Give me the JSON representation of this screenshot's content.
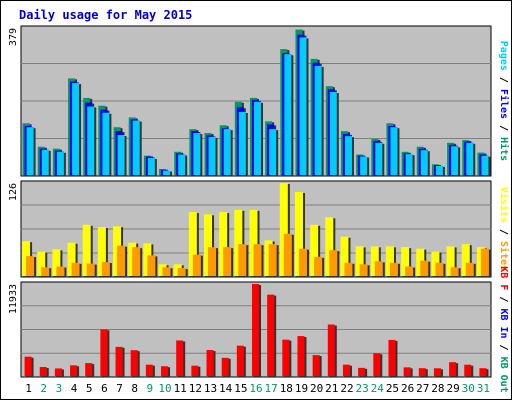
{
  "chart_data": {
    "type": "bar",
    "title": "Daily usage for May 2015",
    "days": [
      {
        "label": "1",
        "weekend": false
      },
      {
        "label": "2",
        "weekend": true
      },
      {
        "label": "3",
        "weekend": true
      },
      {
        "label": "4",
        "weekend": false
      },
      {
        "label": "5",
        "weekend": false
      },
      {
        "label": "6",
        "weekend": false
      },
      {
        "label": "7",
        "weekend": false
      },
      {
        "label": "8",
        "weekend": false
      },
      {
        "label": "9",
        "weekend": true
      },
      {
        "label": "10",
        "weekend": true
      },
      {
        "label": "11",
        "weekend": false
      },
      {
        "label": "12",
        "weekend": false
      },
      {
        "label": "13",
        "weekend": false
      },
      {
        "label": "14",
        "weekend": false
      },
      {
        "label": "15",
        "weekend": false
      },
      {
        "label": "16",
        "weekend": true
      },
      {
        "label": "17",
        "weekend": true
      },
      {
        "label": "18",
        "weekend": false
      },
      {
        "label": "19",
        "weekend": false
      },
      {
        "label": "20",
        "weekend": false
      },
      {
        "label": "21",
        "weekend": false
      },
      {
        "label": "22",
        "weekend": false
      },
      {
        "label": "23",
        "weekend": true
      },
      {
        "label": "24",
        "weekend": true
      },
      {
        "label": "25",
        "weekend": false
      },
      {
        "label": "26",
        "weekend": false
      },
      {
        "label": "27",
        "weekend": false
      },
      {
        "label": "28",
        "weekend": false
      },
      {
        "label": "29",
        "weekend": false
      },
      {
        "label": "30",
        "weekend": true
      },
      {
        "label": "31",
        "weekend": true
      }
    ],
    "panels": [
      {
        "id": "pages-files-hits",
        "ymax_label": "379",
        "ymax": 379,
        "side_label": [
          {
            "text": "Pages",
            "color": "#00ccff"
          },
          {
            "text": " / ",
            "color": "#000000"
          },
          {
            "text": "Files",
            "color": "#0000ff"
          },
          {
            "text": " / ",
            "color": "#000000"
          },
          {
            "text": "Hits",
            "color": "#009966"
          }
        ],
        "series": [
          {
            "color": "#009966",
            "values": [
              135,
              75,
              70,
              250,
              200,
              180,
              125,
              150,
              52,
              18,
              62,
              120,
              110,
              130,
              190,
              200,
              140,
              325,
              375,
              300,
              230,
              115,
              55,
              95,
              135,
              62,
              75,
              30,
              85,
              92,
              60
            ]
          },
          {
            "color": "#0000ff",
            "values": [
              128,
              70,
              65,
              242,
              188,
              170,
              115,
              145,
              50,
              16,
              58,
              115,
              104,
              122,
              176,
              195,
              132,
              315,
              362,
              290,
              222,
              108,
              52,
              90,
              128,
              58,
              70,
              28,
              80,
              88,
              55
            ]
          },
          {
            "color": "#00ccff",
            "values": [
              125,
              67,
              62,
              238,
              178,
              162,
              105,
              142,
              46,
              14,
              55,
              110,
              100,
              120,
              164,
              190,
              120,
              312,
              355,
              282,
              215,
              102,
              50,
              85,
              125,
              56,
              66,
              26,
              76,
              85,
              52
            ]
          }
        ]
      },
      {
        "id": "visits-sites",
        "ymax_label": "126",
        "ymax": 126,
        "side_label": [
          {
            "text": "Visits",
            "color": "#ffff00"
          },
          {
            "text": " / ",
            "color": "#000000"
          },
          {
            "text": "Sites",
            "color": "#ff9900"
          }
        ],
        "series": [
          {
            "color": "#ffff00",
            "values": [
              48,
              34,
              37,
              46,
              70,
              67,
              68,
              46,
              45,
              17,
              17,
              87,
              84,
              87,
              90,
              90,
              49,
              126,
              114,
              70,
              80,
              54,
              41,
              41,
              41,
              40,
              38,
              34,
              41,
              44,
              40
            ]
          },
          {
            "color": "#ff9900",
            "values": [
              28,
              13,
              14,
              19,
              18,
              20,
              42,
              40,
              29,
              13,
              12,
              30,
              40,
              40,
              44,
              44,
              44,
              58,
              38,
              27,
              36,
              19,
              17,
              21,
              19,
              14,
              22,
              19,
              13,
              19,
              38
            ]
          }
        ]
      },
      {
        "id": "kb",
        "ymax_label": "11933",
        "ymax": 11933,
        "side_label": [
          {
            "text": "KB F",
            "color": "#ff0000"
          },
          {
            "text": " / ",
            "color": "#000000"
          },
          {
            "text": "KB In",
            "color": "#0000ff"
          },
          {
            "text": " / ",
            "color": "#000000"
          },
          {
            "text": "KB Out",
            "color": "#009966"
          }
        ],
        "series": [
          {
            "color": "#ff0000",
            "values": [
              2610,
              1280,
              1100,
              1500,
              1780,
              6120,
              3870,
              3440,
              1580,
              1380,
              4690,
              1450,
              3460,
              2460,
              4020,
              11933,
              10570,
              4790,
              5250,
              2810,
              6730,
              1580,
              1170,
              3050,
              4760,
              1240,
              1130,
              1120,
              1900,
              1580,
              1130
            ]
          }
        ]
      }
    ]
  }
}
